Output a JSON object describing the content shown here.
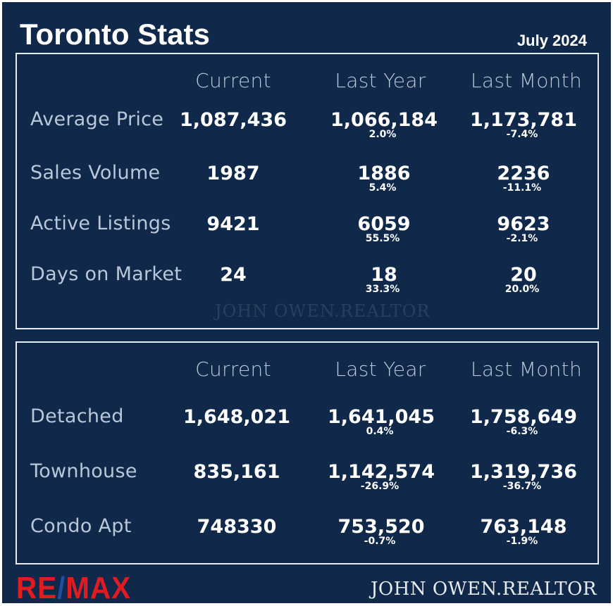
{
  "header": {
    "title": "Toronto Stats",
    "date": "July 2024"
  },
  "columns": [
    "Current",
    "Last Year",
    "Last Month"
  ],
  "market": {
    "rows": [
      {
        "label": "Average Price",
        "current": "1,087,436",
        "last_year": "1,066,184",
        "last_year_change": "2.0%",
        "last_month": "1,173,781",
        "last_month_change": "-7.4%"
      },
      {
        "label": "Sales Volume",
        "current": "1987",
        "last_year": "1886",
        "last_year_change": "5.4%",
        "last_month": "2236",
        "last_month_change": "-11.1%"
      },
      {
        "label": "Active Listings",
        "current": "9421",
        "last_year": "6059",
        "last_year_change": "55.5%",
        "last_month": "9623",
        "last_month_change": "-2.1%"
      },
      {
        "label": "Days on Market",
        "current": "24",
        "last_year": "18",
        "last_year_change": "33.3%",
        "last_month": "20",
        "last_month_change": "20.0%"
      }
    ],
    "watermark": "JOHN OWEN.REALTOR"
  },
  "types": {
    "rows": [
      {
        "label": "Detached",
        "current": "1,648,021",
        "last_year": "1,641,045",
        "last_year_change": "0.4%",
        "last_month": "1,758,649",
        "last_month_change": "-6.3%"
      },
      {
        "label": "Townhouse",
        "current": "835,161",
        "last_year": "1,142,574",
        "last_year_change": "-26.9%",
        "last_month": "1,319,736",
        "last_month_change": "-36.7%"
      },
      {
        "label": "Condo Apt",
        "current": "748330",
        "last_year": "753,520",
        "last_year_change": "-0.7%",
        "last_month": "763,148",
        "last_month_change": "-1.9%"
      }
    ]
  },
  "footer": {
    "logo": "RE/MAX",
    "signature": "JOHN OWEN.REALTOR"
  },
  "colors": {
    "background": "#10284a",
    "logo_red": "#e11b22",
    "logo_blue": "#1f4fa3",
    "label": "#b9c7d8"
  }
}
